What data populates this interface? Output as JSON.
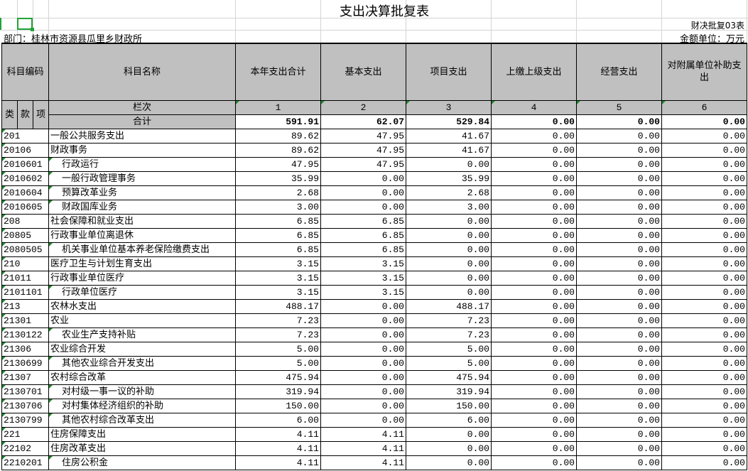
{
  "title": "支出决算批复表",
  "form_no": "财决批复03表",
  "department": "部门：桂林市资源县瓜里乡财政所",
  "unit": "金额单位：万元",
  "headers": {
    "code": "科目编码",
    "name": "科目名称",
    "lei": "类",
    "kuan": "款",
    "xiang": "项",
    "lanci": "栏次",
    "total_label": "合计",
    "columns": [
      "本年支出合计",
      "基本支出",
      "项目支出",
      "上缴上级支出",
      "经营支出",
      "对附属单位补助支出"
    ],
    "column_numbers": [
      "1",
      "2",
      "3",
      "4",
      "5",
      "6"
    ]
  },
  "totals": [
    "591.91",
    "62.07",
    "529.84",
    "0.00",
    "0.00",
    "0.00"
  ],
  "rows": [
    {
      "code": "201",
      "name": "一般公共服务支出",
      "values": [
        "89.62",
        "47.95",
        "41.67",
        "0.00",
        "0.00",
        "0.00"
      ]
    },
    {
      "code": "20106",
      "name": "财政事务",
      "values": [
        "89.62",
        "47.95",
        "41.67",
        "0.00",
        "0.00",
        "0.00"
      ]
    },
    {
      "code": "2010601",
      "name": "行政运行",
      "values": [
        "47.95",
        "47.95",
        "0.00",
        "0.00",
        "0.00",
        "0.00"
      ]
    },
    {
      "code": "2010602",
      "name": "一般行政管理事务",
      "values": [
        "35.99",
        "0.00",
        "35.99",
        "0.00",
        "0.00",
        "0.00"
      ]
    },
    {
      "code": "2010604",
      "name": "预算改革业务",
      "values": [
        "2.68",
        "0.00",
        "2.68",
        "0.00",
        "0.00",
        "0.00"
      ]
    },
    {
      "code": "2010605",
      "name": "财政国库业务",
      "values": [
        "3.00",
        "0.00",
        "3.00",
        "0.00",
        "0.00",
        "0.00"
      ]
    },
    {
      "code": "208",
      "name": "社会保障和就业支出",
      "values": [
        "6.85",
        "6.85",
        "0.00",
        "0.00",
        "0.00",
        "0.00"
      ]
    },
    {
      "code": "20805",
      "name": "行政事业单位离退休",
      "values": [
        "6.85",
        "6.85",
        "0.00",
        "0.00",
        "0.00",
        "0.00"
      ]
    },
    {
      "code": "2080505",
      "name": "机关事业单位基本养老保险缴费支出",
      "values": [
        "6.85",
        "6.85",
        "0.00",
        "0.00",
        "0.00",
        "0.00"
      ]
    },
    {
      "code": "210",
      "name": "医疗卫生与计划生育支出",
      "values": [
        "3.15",
        "3.15",
        "0.00",
        "0.00",
        "0.00",
        "0.00"
      ]
    },
    {
      "code": "21011",
      "name": "行政事业单位医疗",
      "values": [
        "3.15",
        "3.15",
        "0.00",
        "0.00",
        "0.00",
        "0.00"
      ]
    },
    {
      "code": "2101101",
      "name": "行政单位医疗",
      "values": [
        "3.15",
        "3.15",
        "0.00",
        "0.00",
        "0.00",
        "0.00"
      ]
    },
    {
      "code": "213",
      "name": "农林水支出",
      "values": [
        "488.17",
        "0.00",
        "488.17",
        "0.00",
        "0.00",
        "0.00"
      ]
    },
    {
      "code": "21301",
      "name": "农业",
      "values": [
        "7.23",
        "0.00",
        "7.23",
        "0.00",
        "0.00",
        "0.00"
      ]
    },
    {
      "code": "2130122",
      "name": "农业生产支持补贴",
      "values": [
        "7.23",
        "0.00",
        "7.23",
        "0.00",
        "0.00",
        "0.00"
      ]
    },
    {
      "code": "21306",
      "name": "农业综合开发",
      "values": [
        "5.00",
        "0.00",
        "5.00",
        "0.00",
        "0.00",
        "0.00"
      ]
    },
    {
      "code": "2130699",
      "name": "其他农业综合开发支出",
      "values": [
        "5.00",
        "0.00",
        "5.00",
        "0.00",
        "0.00",
        "0.00"
      ]
    },
    {
      "code": "21307",
      "name": "农村综合改革",
      "values": [
        "475.94",
        "0.00",
        "475.94",
        "0.00",
        "0.00",
        "0.00"
      ]
    },
    {
      "code": "2130701",
      "name": "对村级一事一议的补助",
      "values": [
        "319.94",
        "0.00",
        "319.94",
        "0.00",
        "0.00",
        "0.00"
      ]
    },
    {
      "code": "2130706",
      "name": "对村集体经济组织的补助",
      "values": [
        "150.00",
        "0.00",
        "150.00",
        "0.00",
        "0.00",
        "0.00"
      ]
    },
    {
      "code": "2130799",
      "name": "其他农村综合改革支出",
      "values": [
        "6.00",
        "0.00",
        "6.00",
        "0.00",
        "0.00",
        "0.00"
      ]
    },
    {
      "code": "221",
      "name": "住房保障支出",
      "values": [
        "4.11",
        "4.11",
        "0.00",
        "0.00",
        "0.00",
        "0.00"
      ]
    },
    {
      "code": "22102",
      "name": "住房改革支出",
      "values": [
        "4.11",
        "4.11",
        "0.00",
        "0.00",
        "0.00",
        "0.00"
      ]
    },
    {
      "code": "2210201",
      "name": "住房公积金",
      "values": [
        "4.11",
        "4.11",
        "0.00",
        "0.00",
        "0.00",
        "0.00"
      ]
    }
  ]
}
